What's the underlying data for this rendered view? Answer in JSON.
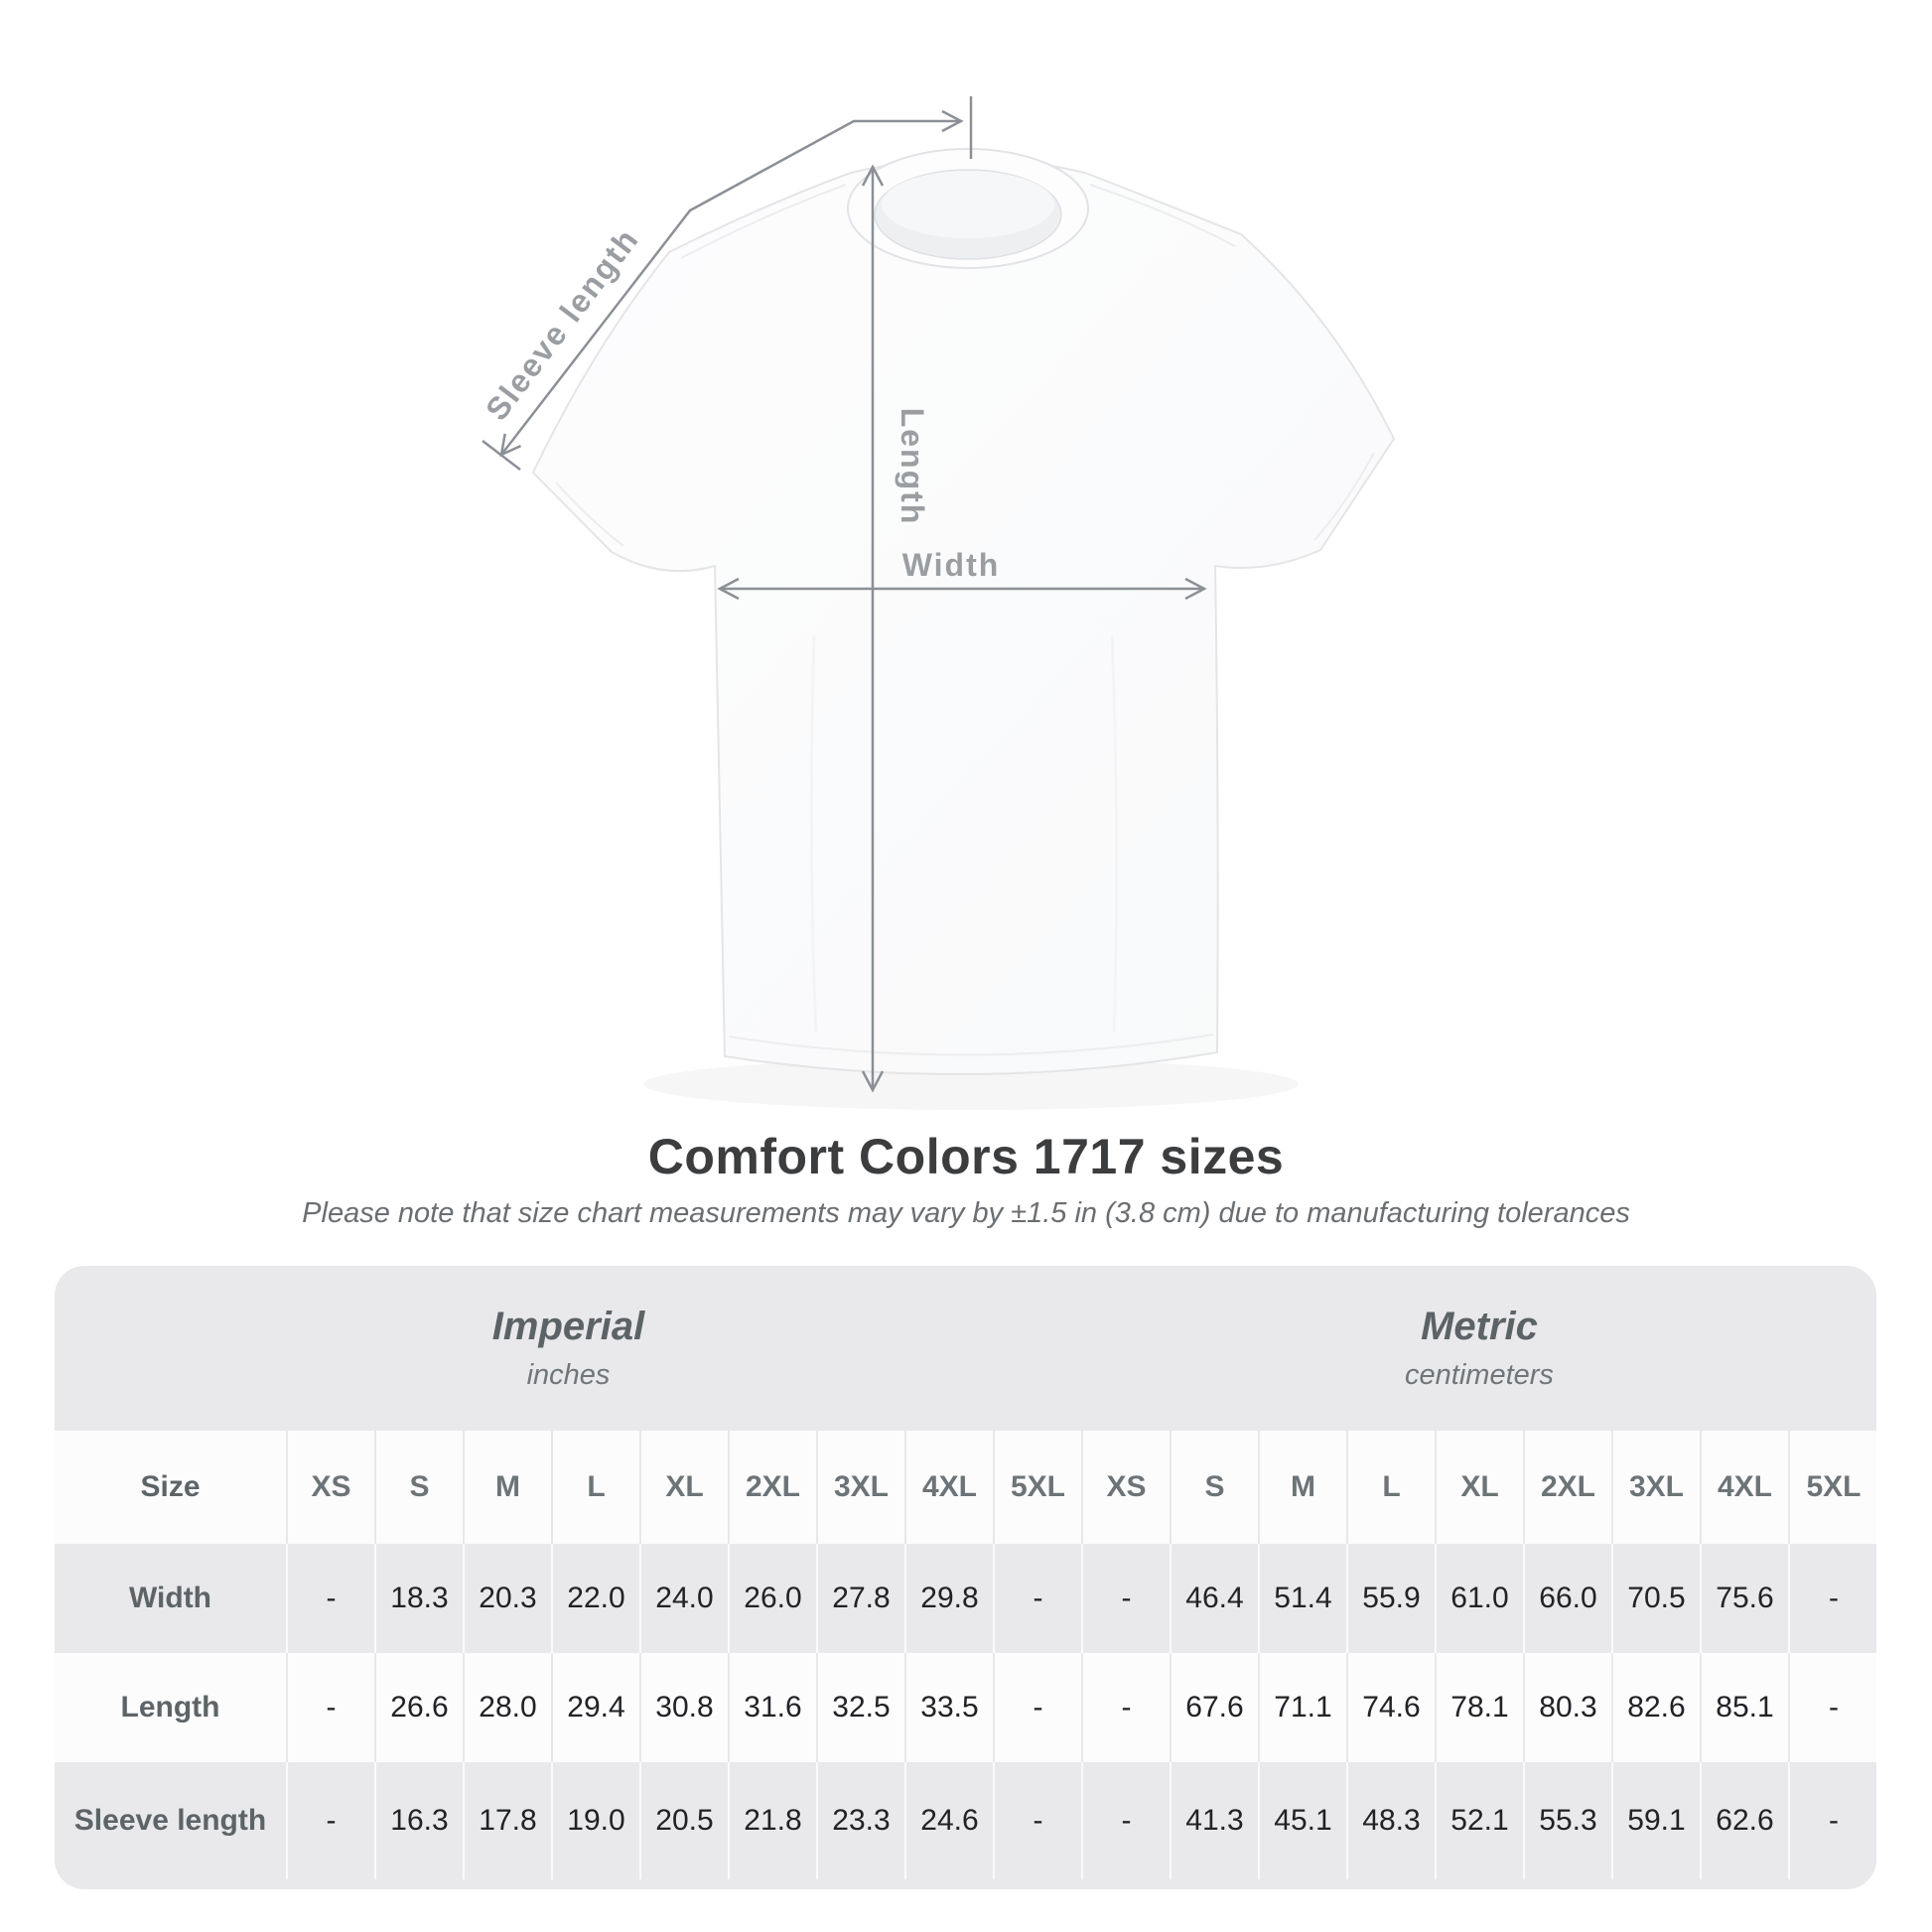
{
  "diagram": {
    "labels": {
      "sleeve_length": "Sleeve length",
      "length": "Length",
      "width": "Width"
    },
    "arrow_color": "#8b9096",
    "label_color": "#9a9ea2"
  },
  "title": "Comfort Colors 1717 sizes",
  "subtitle": "Please note that size chart measurements may vary by ±1.5 in (3.8 cm) due to manufacturing tolerances",
  "table": {
    "panel_color": "#e9e9eb",
    "groups": [
      {
        "name": "Imperial",
        "unit": "inches"
      },
      {
        "name": "Metric",
        "unit": "centimeters"
      }
    ],
    "size_label": "Size",
    "sizes": [
      "XS",
      "S",
      "M",
      "L",
      "XL",
      "2XL",
      "3XL",
      "4XL",
      "5XL"
    ],
    "rows": [
      {
        "label": "Width",
        "imperial": [
          "-",
          "18.3",
          "20.3",
          "22.0",
          "24.0",
          "26.0",
          "27.8",
          "29.8",
          "-"
        ],
        "metric": [
          "-",
          "46.4",
          "51.4",
          "55.9",
          "61.0",
          "66.0",
          "70.5",
          "75.6",
          "-"
        ]
      },
      {
        "label": "Length",
        "imperial": [
          "-",
          "26.6",
          "28.0",
          "29.4",
          "30.8",
          "31.6",
          "32.5",
          "33.5",
          "-"
        ],
        "metric": [
          "-",
          "67.6",
          "71.1",
          "74.6",
          "78.1",
          "80.3",
          "82.6",
          "85.1",
          "-"
        ]
      },
      {
        "label": "Sleeve length",
        "imperial": [
          "-",
          "16.3",
          "17.8",
          "19.0",
          "20.5",
          "21.8",
          "23.3",
          "24.6",
          "-"
        ],
        "metric": [
          "-",
          "41.3",
          "45.1",
          "48.3",
          "52.1",
          "55.3",
          "59.1",
          "62.6",
          "-"
        ]
      }
    ]
  }
}
